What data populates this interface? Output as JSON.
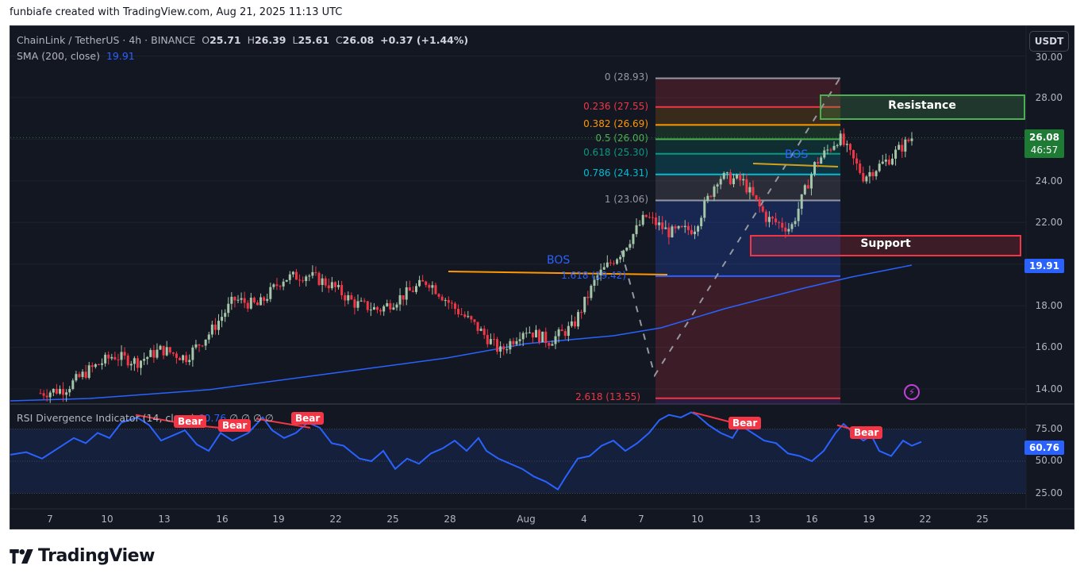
{
  "caption": "funbiafe created with TradingView.com, Aug 21, 2025 11:13 UTC",
  "header": {
    "symbol": "ChainLink / TetherUS · 4h · BINANCE",
    "open_label": "O",
    "open": "25.71",
    "high_label": "H",
    "high": "26.39",
    "low_label": "L",
    "low": "25.61",
    "close_label": "C",
    "close": "26.08",
    "change": "+0.37 (+1.44%)",
    "sma_label": "SMA (200, close)",
    "sma_value": "19.91",
    "currency_button": "USDT"
  },
  "rsi_pane": {
    "label": "RSI Divergence Indicator (14, close)",
    "value": "60.76",
    "extra": "∅ ∅ ∅ ∅",
    "axis": [
      "75.00",
      "50.00",
      "25.00"
    ],
    "current_badge": "60.76",
    "bear_labels": [
      "Bear",
      "Bear",
      "Bear",
      "Bear",
      "Bear"
    ]
  },
  "price_axis": {
    "ticks": [
      "30.00",
      "28.00",
      "24.00",
      "22.00",
      "18.00",
      "16.00",
      "14.00"
    ],
    "current_price": "26.08",
    "countdown": "46:57",
    "sma_badge": "19.91"
  },
  "time_axis": [
    "7",
    "10",
    "13",
    "16",
    "19",
    "22",
    "25",
    "28",
    "Aug",
    "4",
    "7",
    "10",
    "13",
    "16",
    "19",
    "22",
    "25"
  ],
  "fib_levels": [
    {
      "label": "0 (28.93)",
      "color": "#9598a1"
    },
    {
      "label": "0.236 (27.55)",
      "color": "#f23645"
    },
    {
      "label": "0.382 (26.69)",
      "color": "#ff9800"
    },
    {
      "label": "0.5 (26.00)",
      "color": "#4caf50"
    },
    {
      "label": "0.618 (25.30)",
      "color": "#089981"
    },
    {
      "label": "0.786 (24.31)",
      "color": "#00bcd4"
    },
    {
      "label": "1 (23.06)",
      "color": "#9598a1"
    },
    {
      "label": "1.618 (19.42)",
      "color": "#2962ff"
    },
    {
      "label": "2.618 (13.55)",
      "color": "#f23645"
    }
  ],
  "annotations": {
    "resistance": "Resistance",
    "support": "Support",
    "bos_1": "BOS",
    "bos_2": "BOS"
  },
  "footer": {
    "brand": "TradingView"
  },
  "colors": {
    "background": "#131722",
    "up_candle": "#a5c6a8",
    "down_candle": "#f23645",
    "sma": "#2962ff",
    "rsi": "#2962ff",
    "bos_line": "#ff9800",
    "resistance": "#4caf50",
    "support": "#f23645"
  },
  "chart_data": {
    "type": "candlestick",
    "title": "ChainLink / TetherUS · 4h · BINANCE",
    "xlabel": "",
    "ylabel": "USDT",
    "ylim": [
      13.2,
      30.5
    ],
    "x_ticks": [
      "7",
      "10",
      "13",
      "16",
      "19",
      "22",
      "25",
      "28",
      "Aug",
      "4",
      "7",
      "10",
      "13",
      "16",
      "19",
      "22",
      "25"
    ],
    "ohlc_last": {
      "open": 25.71,
      "high": 26.39,
      "low": 25.61,
      "close": 26.08,
      "change": 0.37,
      "change_pct": 1.44
    },
    "approx_close_path": {
      "x": [
        "Jul 5",
        "Jul 7",
        "Jul 10",
        "Jul 11",
        "Jul 13",
        "Jul 14",
        "Jul 16",
        "Jul 17",
        "Jul 18",
        "Jul 19",
        "Jul 20",
        "Jul 21",
        "Jul 22",
        "Jul 24",
        "Jul 25",
        "Jul 27",
        "Jul 28",
        "Jul 30",
        "Aug 1",
        "Aug 3",
        "Aug 5",
        "Aug 6",
        "Aug 7",
        "Aug 8",
        "Aug 9",
        "Aug 10",
        "Aug 11",
        "Aug 12",
        "Aug 13",
        "Aug 14",
        "Aug 15",
        "Aug 16",
        "Aug 17",
        "Aug 18",
        "Aug 19",
        "Aug 20",
        "Aug 21"
      ],
      "values": [
        13.8,
        14.0,
        14.9,
        15.6,
        15.3,
        15.9,
        15.5,
        16.7,
        18.3,
        18.0,
        19.3,
        19.5,
        19.0,
        18.1,
        17.8,
        18.5,
        19.2,
        18.0,
        17.0,
        15.8,
        16.9,
        16.3,
        17.0,
        19.4,
        20.6,
        22.3,
        21.5,
        21.7,
        24.2,
        24.0,
        22.2,
        21.7,
        24.8,
        26.1,
        24.2,
        25.0,
        26.08
      ]
    },
    "series": [
      {
        "name": "SMA (200, close)",
        "last_value": 19.91
      },
      {
        "name": "RSI Divergence Indicator (14, close)",
        "last_value": 60.76,
        "ylim": [
          0,
          100
        ],
        "levels": [
          25,
          50,
          75
        ]
      }
    ],
    "fibonacci": [
      {
        "ratio": 0,
        "price": 28.93
      },
      {
        "ratio": 0.236,
        "price": 27.55
      },
      {
        "ratio": 0.382,
        "price": 26.69
      },
      {
        "ratio": 0.5,
        "price": 26.0
      },
      {
        "ratio": 0.618,
        "price": 25.3
      },
      {
        "ratio": 0.786,
        "price": 24.31
      },
      {
        "ratio": 1,
        "price": 23.06
      },
      {
        "ratio": 1.618,
        "price": 19.42
      },
      {
        "ratio": 2.618,
        "price": 13.55
      }
    ],
    "zones": [
      {
        "name": "Resistance",
        "low": 26.8,
        "high": 28.0
      },
      {
        "name": "Support",
        "low": 20.2,
        "high": 21.2
      }
    ],
    "annotations": [
      "BOS",
      "BOS",
      "Bear x5 (RSI divergence)"
    ]
  }
}
